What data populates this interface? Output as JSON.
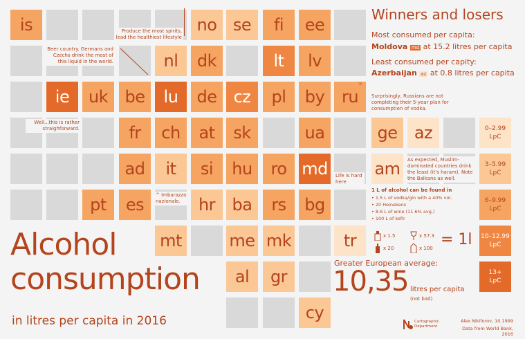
{
  "colors": {
    "background": "#f4f4f4",
    "empty_cell": "#d9d9d9",
    "accent_text": "#b4441c",
    "tier1": "#fde3c8",
    "tier2": "#fbc795",
    "tier3": "#f6a462",
    "tier4": "#ef8642",
    "tier5": "#e46a2a"
  },
  "title": {
    "line1": "Alcohol",
    "line2": "consumption",
    "subtitle": "in litres per capita in 2016"
  },
  "winners_losers": {
    "heading": "Winners and losers",
    "most_label": "Most consumed per capita:",
    "most_country": "Moldova",
    "most_code": "md",
    "most_value": "at 15.2 litres per capita",
    "least_label": "Least consumed per capity:",
    "least_country": "Azerbaijan",
    "least_code": "az",
    "least_value": "at 0.8 litres per capita"
  },
  "legend": {
    "tiers": [
      {
        "label": "0–2.99 LpC",
        "line1": "0–2.99",
        "line2": "LpC"
      },
      {
        "label": "3–5.99 LpC",
        "line1": "3–5.99",
        "line2": "LpC"
      },
      {
        "label": "6–9.99 LpC",
        "line1": "6–9.99",
        "line2": "LpC"
      },
      {
        "label": "10–12.99 LpC",
        "line1": "10–12.99",
        "line2": "LpC"
      },
      {
        "label": "13+ LpC",
        "line1": "13+",
        "line2": "LpC"
      }
    ]
  },
  "notes": {
    "spirits": "Produce the most spirits,\nlead the healthiest lifestyle",
    "beer": "Beer country. Germans and\nCzechs drink the most of\nthis liquid in the world.",
    "russia": "Surprisingly, Russians are not\ncompleting their 5-year plan for\nconsumption of vodka.",
    "ireland": "Well...this is rather\nstraighforward.",
    "muslim": "As expected, Muslim-\ndominated countries drink\nthe least (it's haram). Note\nthe Balkans as well.",
    "moldova": "Life is hard\nhere",
    "italy": "^ Imbarazzo\nnazionale.",
    "asterisk": "*"
  },
  "equivalence": {
    "heading": "1 L of alcohol can be found in",
    "items": [
      "• 1.5 L of vodka/gin with a 40% vol.",
      "• 20 Heinekens",
      "• 8.6 L of wine (11.6% avg.)",
      "• 100 L of kefir"
    ],
    "icon_counts": [
      "x 1.5",
      "x 57.3",
      "x 20",
      "x 100"
    ],
    "equals": "= 1l"
  },
  "average": {
    "label": "Greater European average:",
    "value": "10,35",
    "unit": "litres per capita",
    "aside": "(not bad)"
  },
  "credits": {
    "logo_name": "Cartographic\nDepartment",
    "author": "Alex Nikiforov, 10.1999",
    "source": "Data from World Bank, 2016"
  },
  "chart_data": {
    "type": "table",
    "description_units": "litres per capita, binned into 5 tiers (tier index 1–5 matches legend.tiers)",
    "tiles": [
      {
        "code": "is",
        "tier": 3
      },
      {
        "code": "no",
        "tier": 2
      },
      {
        "code": "se",
        "tier": 2
      },
      {
        "code": "fi",
        "tier": 3
      },
      {
        "code": "ee",
        "tier": 3
      },
      {
        "code": "nl",
        "tier": 2
      },
      {
        "code": "dk",
        "tier": 3
      },
      {
        "code": "lt",
        "tier": 4
      },
      {
        "code": "lv",
        "tier": 3
      },
      {
        "code": "ie",
        "tier": 5
      },
      {
        "code": "uk",
        "tier": 3
      },
      {
        "code": "be",
        "tier": 3
      },
      {
        "code": "lu",
        "tier": 5
      },
      {
        "code": "de",
        "tier": 3
      },
      {
        "code": "cz",
        "tier": 4
      },
      {
        "code": "pl",
        "tier": 3
      },
      {
        "code": "by",
        "tier": 3
      },
      {
        "code": "ru",
        "tier": 3
      },
      {
        "code": "fr",
        "tier": 3
      },
      {
        "code": "ch",
        "tier": 3
      },
      {
        "code": "at",
        "tier": 3
      },
      {
        "code": "sk",
        "tier": 3
      },
      {
        "code": "ua",
        "tier": 3
      },
      {
        "code": "ge",
        "tier": 2
      },
      {
        "code": "az",
        "tier": 1
      },
      {
        "code": "ad",
        "tier": 3
      },
      {
        "code": "it",
        "tier": 2
      },
      {
        "code": "si",
        "tier": 3
      },
      {
        "code": "hu",
        "tier": 3
      },
      {
        "code": "ro",
        "tier": 3
      },
      {
        "code": "md",
        "tier": 5
      },
      {
        "code": "am",
        "tier": 1
      },
      {
        "code": "pt",
        "tier": 3
      },
      {
        "code": "es",
        "tier": 3
      },
      {
        "code": "hr",
        "tier": 2
      },
      {
        "code": "ba",
        "tier": 2
      },
      {
        "code": "rs",
        "tier": 3
      },
      {
        "code": "bg",
        "tier": 3
      },
      {
        "code": "mt",
        "tier": 2
      },
      {
        "code": "me",
        "tier": 2
      },
      {
        "code": "mk",
        "tier": 2
      },
      {
        "code": "tr",
        "tier": 1
      },
      {
        "code": "al",
        "tier": 2
      },
      {
        "code": "gr",
        "tier": 2
      },
      {
        "code": "cy",
        "tier": 2
      }
    ]
  }
}
